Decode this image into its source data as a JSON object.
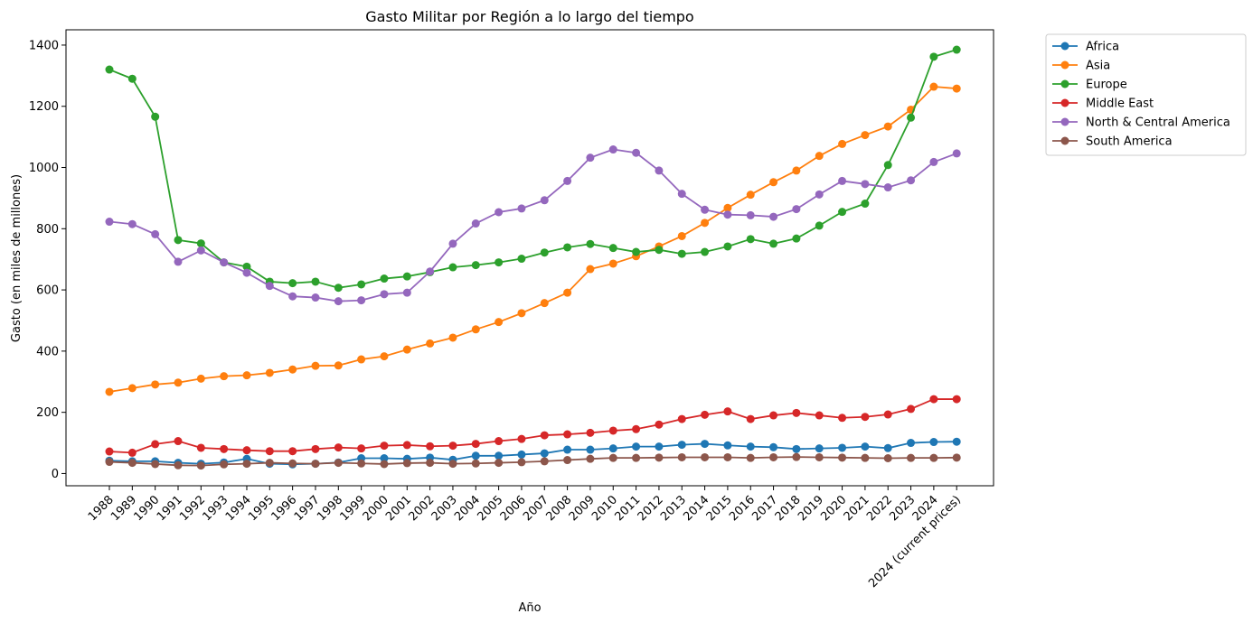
{
  "chart_data": {
    "type": "line",
    "title": "Gasto Militar por Región a lo largo del tiempo",
    "xlabel": "Año",
    "ylabel": "Gasto (en miles de millones)",
    "categories": [
      "1988",
      "1989",
      "1990",
      "1991",
      "1992",
      "1993",
      "1994",
      "1995",
      "1996",
      "1997",
      "1998",
      "1999",
      "2000",
      "2001",
      "2002",
      "2003",
      "2004",
      "2005",
      "2006",
      "2007",
      "2008",
      "2009",
      "2010",
      "2011",
      "2012",
      "2013",
      "2014",
      "2015",
      "2016",
      "2017",
      "2018",
      "2019",
      "2020",
      "2021",
      "2022",
      "2023",
      "2024",
      "2024 (current prices)"
    ],
    "yticks": [
      0,
      200,
      400,
      600,
      800,
      1000,
      1200,
      1400
    ],
    "ylim": [
      -40,
      1450
    ],
    "legend_position": "outside-top-right",
    "grid": false,
    "series": [
      {
        "name": "Africa",
        "color": "#1f77b4",
        "values": [
          42,
          40,
          40,
          35,
          32,
          36,
          48,
          32,
          30,
          32,
          36,
          50,
          50,
          48,
          52,
          45,
          58,
          58,
          62,
          66,
          78,
          78,
          82,
          88,
          88,
          94,
          97,
          92,
          88,
          86,
          80,
          82,
          84,
          88,
          83,
          100,
          103,
          104
        ]
      },
      {
        "name": "Asia",
        "color": "#ff7f0e",
        "values": [
          267,
          279,
          291,
          297,
          310,
          318,
          321,
          329,
          340,
          352,
          353,
          373,
          383,
          405,
          425,
          444,
          471,
          495,
          524,
          557,
          591,
          668,
          686,
          710,
          742,
          776,
          819,
          868,
          911,
          952,
          990,
          1038,
          1077,
          1106,
          1134,
          1189,
          1264,
          1258
        ]
      },
      {
        "name": "Europe",
        "color": "#2ca02c",
        "values": [
          1320,
          1290,
          1166,
          763,
          752,
          690,
          676,
          627,
          622,
          627,
          607,
          618,
          637,
          644,
          658,
          674,
          681,
          690,
          702,
          722,
          739,
          750,
          737,
          724,
          731,
          718,
          724,
          742,
          766,
          751,
          768,
          810,
          855,
          882,
          1008,
          1163,
          1362,
          1385
        ]
      },
      {
        "name": "Middle East",
        "color": "#d62728",
        "values": [
          72,
          68,
          96,
          106,
          84,
          80,
          76,
          73,
          73,
          80,
          85,
          82,
          91,
          93,
          89,
          91,
          97,
          106,
          113,
          125,
          128,
          133,
          140,
          145,
          160,
          178,
          192,
          203,
          178,
          190,
          198,
          190,
          182,
          185,
          193,
          211,
          243,
          243
        ]
      },
      {
        "name": "North & Central America",
        "color": "#9467bd",
        "values": [
          823,
          815,
          782,
          692,
          729,
          690,
          656,
          613,
          579,
          575,
          563,
          566,
          586,
          591,
          660,
          751,
          817,
          854,
          866,
          893,
          956,
          1032,
          1059,
          1048,
          990,
          914,
          862,
          846,
          844,
          839,
          864,
          912,
          956,
          946,
          935,
          958,
          1018,
          1046
        ]
      },
      {
        "name": "South America",
        "color": "#8c564b",
        "values": [
          38,
          35,
          31,
          27,
          26,
          30,
          32,
          35,
          33,
          32,
          35,
          33,
          31,
          34,
          35,
          32,
          33,
          35,
          37,
          40,
          44,
          48,
          51,
          51,
          52,
          53,
          53,
          53,
          51,
          53,
          54,
          53,
          52,
          51,
          50,
          51,
          51,
          52
        ]
      }
    ]
  }
}
